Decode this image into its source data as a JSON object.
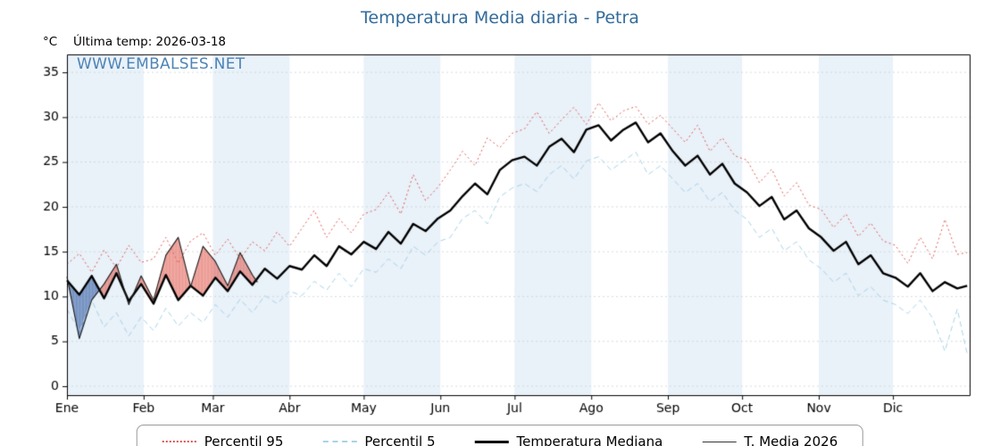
{
  "page": {
    "title": "Temperatura Media diaria - Petra",
    "y_unit": "°C",
    "last_temp_label": "Última temp: 2026-03-18",
    "watermark": "WWW.EMBALSES.NET"
  },
  "legend": [
    {
      "label": "Percentil 95",
      "style": "dotted",
      "color": "#d9534f",
      "width": 2
    },
    {
      "label": "Percentil 5",
      "style": "dashed",
      "color": "#a6d3e6",
      "width": 2
    },
    {
      "label": "Temperatura Mediana",
      "style": "solid",
      "color": "#000000",
      "width": 3
    },
    {
      "label": "T. Media 2026",
      "style": "solid",
      "color": "#333333",
      "width": 1
    }
  ],
  "chart_data": {
    "type": "line",
    "title": "Temperatura Media diaria - Petra",
    "xlabel": "",
    "ylabel": "°C",
    "legend_position": "bottom",
    "grid": true,
    "ylim": [
      -1,
      37
    ],
    "yticks": [
      0,
      5,
      10,
      15,
      20,
      25,
      30,
      35
    ],
    "x_categories": [
      "Ene",
      "Feb",
      "Mar",
      "Abr",
      "May",
      "Jun",
      "Jul",
      "Ago",
      "Sep",
      "Oct",
      "Nov",
      "Dic"
    ],
    "month_start_days": [
      0,
      31,
      59,
      90,
      120,
      151,
      181,
      212,
      243,
      273,
      304,
      334
    ],
    "days_in_year": 365,
    "band_color": "#e9f1f9",
    "grid_color": "#d0d7dd",
    "x_days": [
      0,
      5,
      10,
      15,
      20,
      25,
      30,
      35,
      40,
      45,
      50,
      55,
      60,
      65,
      70,
      75,
      80,
      85,
      90,
      95,
      100,
      105,
      110,
      115,
      120,
      125,
      130,
      135,
      140,
      145,
      150,
      155,
      160,
      165,
      170,
      175,
      180,
      185,
      190,
      195,
      200,
      205,
      210,
      215,
      220,
      225,
      230,
      235,
      240,
      245,
      250,
      255,
      260,
      265,
      270,
      275,
      280,
      285,
      290,
      295,
      300,
      305,
      310,
      315,
      320,
      325,
      330,
      335,
      340,
      345,
      350,
      355,
      360,
      364
    ],
    "series": [
      {
        "name": "Percentil 95",
        "color": "#e05b55",
        "dash": [
          2,
          3
        ],
        "width": 1,
        "y": [
          13.6,
          14.8,
          12.7,
          15.2,
          13.2,
          15.7,
          13.8,
          14.2,
          16.6,
          13.7,
          16.2,
          17.1,
          14.6,
          16.4,
          14.2,
          16.1,
          15.1,
          17.2,
          15.6,
          17.6,
          19.6,
          16.6,
          18.7,
          17.1,
          19.2,
          19.7,
          21.6,
          19.2,
          23.6,
          20.7,
          22.2,
          24.1,
          26.2,
          24.6,
          27.7,
          26.6,
          28.2,
          28.7,
          30.6,
          28.2,
          29.7,
          31.1,
          29.2,
          31.6,
          29.6,
          30.7,
          31.2,
          29.2,
          30.2,
          28.7,
          27.2,
          29.1,
          26.2,
          27.7,
          25.7,
          25.2,
          22.7,
          24.2,
          21.2,
          22.7,
          20.2,
          19.7,
          17.7,
          19.2,
          16.7,
          18.2,
          16.2,
          15.7,
          13.7,
          16.6,
          14.2,
          18.6,
          14.7,
          14.9
        ]
      },
      {
        "name": "Percentil 5",
        "color": "#a6d3e6",
        "dash": [
          6,
          4
        ],
        "width": 1,
        "y": [
          8.6,
          6.1,
          9.6,
          6.6,
          8.2,
          5.6,
          7.7,
          6.2,
          8.7,
          6.7,
          8.2,
          7.1,
          9.1,
          7.7,
          9.7,
          8.2,
          10.1,
          9.2,
          10.6,
          10.1,
          11.7,
          10.7,
          12.6,
          11.1,
          13.1,
          12.7,
          14.2,
          13.1,
          15.6,
          14.6,
          16.1,
          16.6,
          18.7,
          19.6,
          18.1,
          21.1,
          22.1,
          22.6,
          21.7,
          23.6,
          24.6,
          23.1,
          25.1,
          25.6,
          24.1,
          25.1,
          26.1,
          23.6,
          24.6,
          23.1,
          21.6,
          22.6,
          20.6,
          21.6,
          19.6,
          18.6,
          16.6,
          17.6,
          15.1,
          16.1,
          14.1,
          13.1,
          11.6,
          12.6,
          10.1,
          11.1,
          9.6,
          9.1,
          8.1,
          9.6,
          7.6,
          3.9,
          8.6,
          3.6
        ]
      },
      {
        "name": "Temperatura Mediana",
        "color": "#000000",
        "dash": [],
        "width": 2.4,
        "y": [
          11.8,
          10.2,
          12.3,
          9.8,
          12.6,
          9.5,
          11.4,
          9.2,
          12.4,
          9.6,
          11.2,
          10.1,
          12.1,
          10.6,
          12.8,
          11.3,
          13.1,
          12.0,
          13.4,
          13.0,
          14.6,
          13.4,
          15.6,
          14.7,
          16.1,
          15.3,
          17.2,
          15.9,
          18.1,
          17.3,
          18.7,
          19.6,
          21.2,
          22.6,
          21.4,
          24.1,
          25.2,
          25.6,
          24.6,
          26.7,
          27.6,
          26.1,
          28.6,
          29.1,
          27.4,
          28.6,
          29.4,
          27.2,
          28.2,
          26.2,
          24.6,
          25.7,
          23.6,
          24.8,
          22.6,
          21.6,
          20.1,
          21.1,
          18.6,
          19.6,
          17.6,
          16.6,
          15.1,
          16.1,
          13.6,
          14.6,
          12.6,
          12.1,
          11.1,
          12.6,
          10.6,
          11.6,
          10.9,
          11.2
        ]
      },
      {
        "name": "T. Media 2026",
        "color": "#1a1a1a",
        "dash": [],
        "width": 1.1,
        "x": [
          0,
          5,
          10,
          15,
          20,
          25,
          30,
          35,
          40,
          45,
          50,
          55,
          60,
          65,
          70,
          75,
          77
        ],
        "y": [
          12.2,
          5.3,
          9.6,
          11.4,
          13.6,
          9.1,
          12.3,
          9.6,
          14.6,
          16.6,
          11.1,
          15.6,
          13.9,
          11.2,
          14.9,
          12.4,
          11.6
        ]
      }
    ],
    "fill": {
      "between": [
        "T. Media 2026",
        "Temperatura Mediana"
      ],
      "above_color": "rgba(224,88,77,0.6)",
      "below_color": "rgba(55,95,165,0.65)"
    }
  }
}
